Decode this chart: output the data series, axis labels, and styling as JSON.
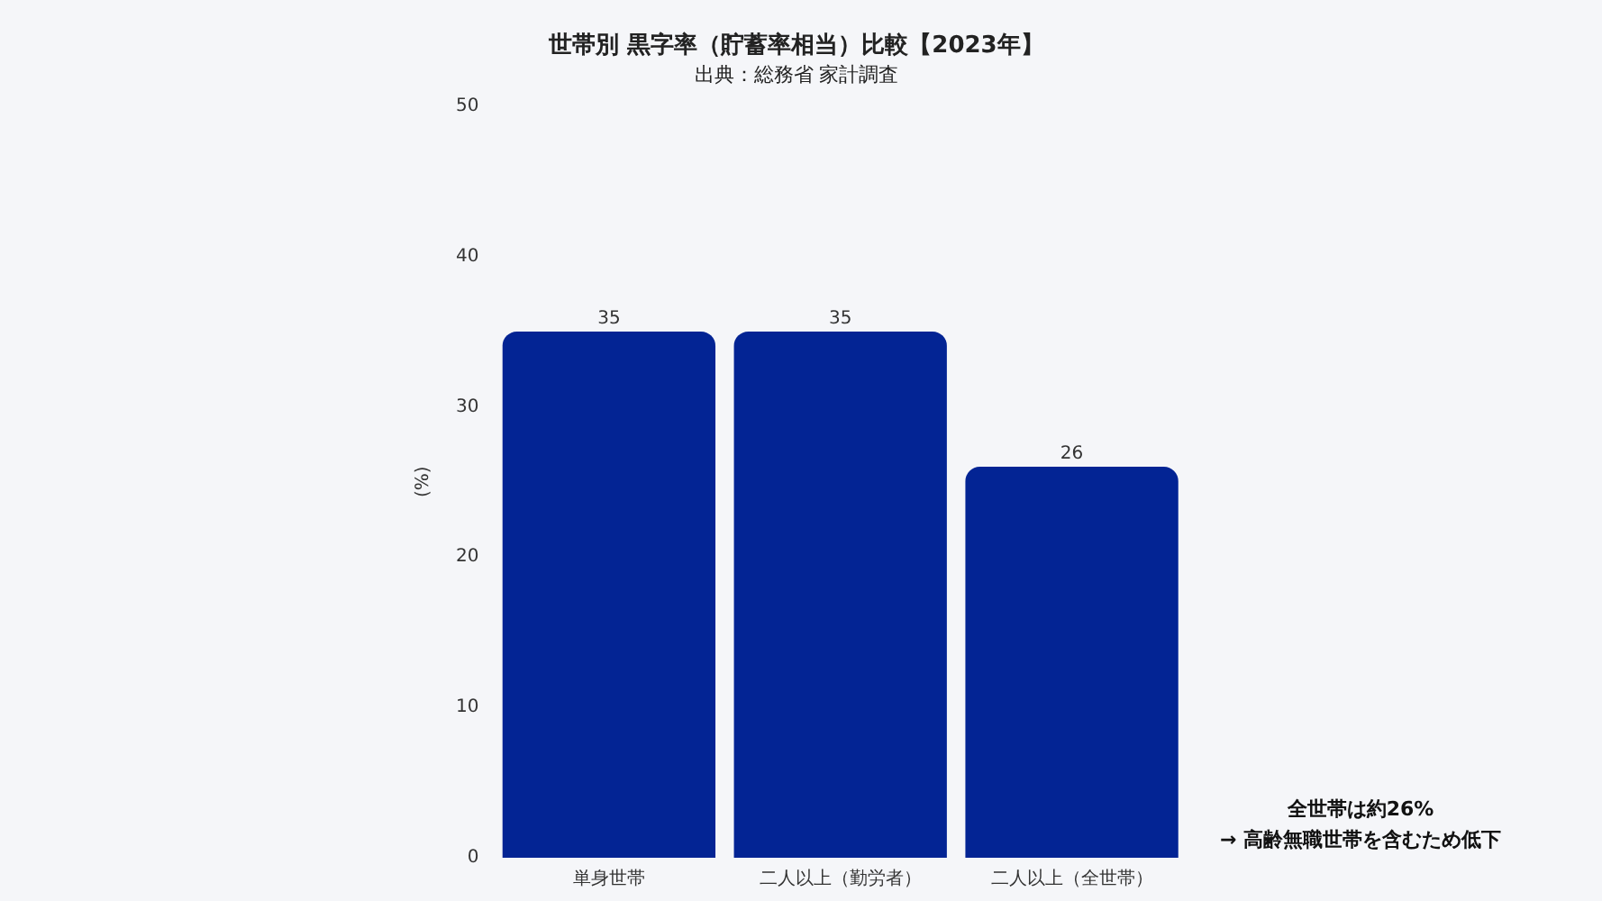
{
  "chart_data": {
    "type": "bar",
    "title": "世帯別 黒字率（貯蓄率相当）比較【2023年】",
    "subtitle": "出典：総務省 家計調査",
    "ylabel": "(%)",
    "categories": [
      "単身世帯",
      "二人以上（勤労者）",
      "二人以上（全世帯）"
    ],
    "values": [
      35,
      35,
      26
    ],
    "color": "#032494",
    "ylim": [
      0,
      50
    ],
    "yticks": [
      0,
      10,
      20,
      30,
      40,
      50
    ],
    "grid": false,
    "data_labels": true,
    "annotations": [
      "全世帯は約26%",
      "→ 高齢無職世帯を含むため低下"
    ]
  }
}
